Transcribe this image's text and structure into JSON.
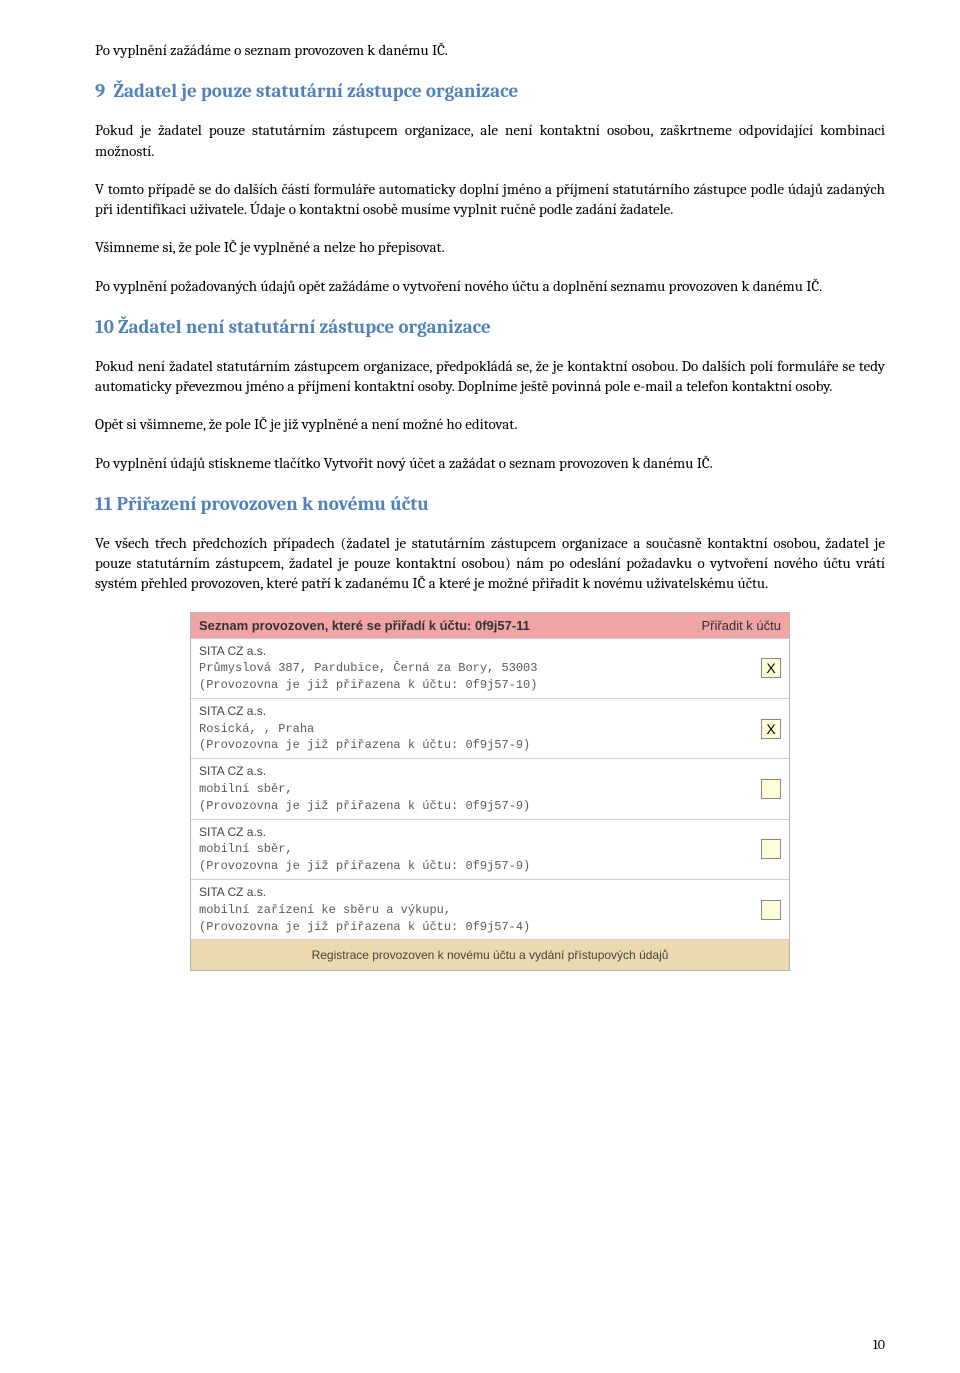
{
  "intro": "Po vyplnění zažádáme o seznam provozoven k danému IČ.",
  "section9": {
    "number": "9",
    "title": "Žadatel je pouze statutární zástupce organizace",
    "p1": "Pokud je žadatel pouze statutárním zástupcem organizace, ale není kontaktní osobou, zaškrtneme odpovídající kombinaci možností.",
    "p2": "V tomto případě se do dalších částí formuláře automaticky doplní jméno a příjmení statutárního zástupce podle údajů zadaných při identifikaci uživatele. Údaje o kontaktní osobě musíme vyplnit ručně podle zadání žadatele.",
    "p3": "Všimneme si, že pole IČ je vyplněné a nelze ho přepisovat.",
    "p4": "Po vyplnění požadovaných údajů opět zažádáme o vytvoření nového účtu a doplnění seznamu provozoven k danému IČ."
  },
  "section10": {
    "number": "10",
    "title": "Žadatel není statutární zástupce organizace",
    "p1": "Pokud není žadatel statutárním zástupcem organizace, předpokládá se, že je kontaktní osobou. Do dalších polí formuláře se tedy automaticky převezmou jméno a příjmení kontaktní osoby. Doplníme ještě povinná pole e-mail a telefon kontaktní osoby.",
    "p2": "Opět si všimneme, že pole IČ je již vyplněné a není možné ho editovat.",
    "p3": "Po vyplnění údajů stiskneme tlačítko Vytvořit nový účet a zažádat o seznam provozoven k danému IČ."
  },
  "section11": {
    "number": "11",
    "title": "Přiřazení provozoven k novému účtu",
    "p1": "Ve všech třech předchozích případech (žadatel je statutárním zástupcem organizace a současně kontaktní osobou, žadatel je pouze statutárním zástupcem, žadatel je pouze kontaktní osobou) nám po odeslání požadavku o vytvoření nového účtu vrátí systém přehled provozoven, které patří k zadanému IČ a které je možné přiřadit k novému uživatelskému účtu."
  },
  "table": {
    "header_left": "Seznam provozoven, které se přiřadí k účtu: 0f9j57-11",
    "header_right": "Přiřadit k účtu",
    "footer": "Registrace provozoven k novému účtu a vydání přístupových údajů",
    "rows": [
      {
        "company": "SITA CZ a.s.",
        "addr": "Průmyslová 387, Pardubice, Černá za Bory, 53003",
        "note": "(Provozovna je již přiřazena k účtu: 0f9j57-10)",
        "checked": true
      },
      {
        "company": "SITA CZ a.s.",
        "addr": "Rosická, , Praha",
        "note": "(Provozovna je již přiřazena k účtu: 0f9j57-9)",
        "checked": true
      },
      {
        "company": "SITA CZ a.s.",
        "addr": "mobilní sběr,",
        "note": "(Provozovna je již přiřazena k účtu: 0f9j57-9)",
        "checked": false
      },
      {
        "company": "SITA CZ a.s.",
        "addr": "mobilní sběr,",
        "note": "(Provozovna je již přiřazena k účtu: 0f9j57-9)",
        "checked": false
      },
      {
        "company": "SITA CZ a.s.",
        "addr": "mobilní zařízení ke sběru a výkupu,",
        "note": "(Provozovna je již přiřazena k účtu: 0f9j57-4)",
        "checked": false
      }
    ]
  },
  "page_number": "10"
}
